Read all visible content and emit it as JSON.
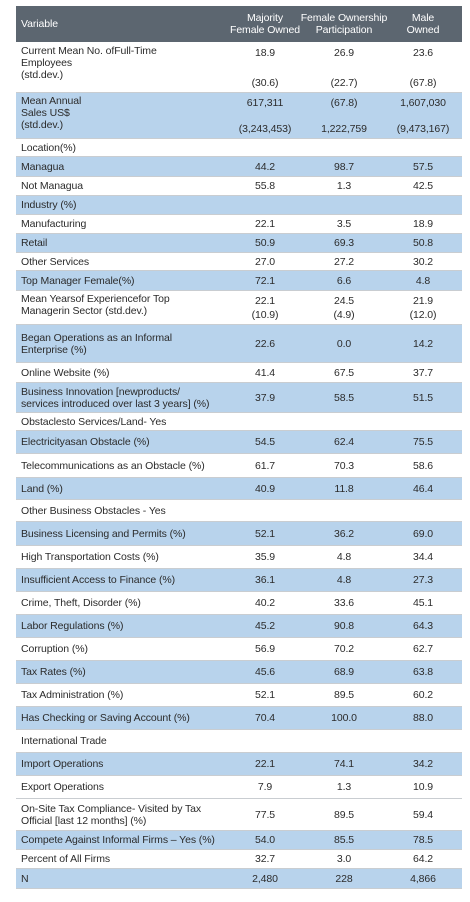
{
  "headers": {
    "variable": "Variable",
    "col1": [
      "Majority",
      "Female Owned"
    ],
    "col2": [
      "Female Ownership",
      "Participation"
    ],
    "col3": [
      "Male",
      "Owned"
    ]
  },
  "rows": [
    {
      "label": [
        "Current Mean No. ofFull-Time",
        "Employees",
        "(std.dev.)"
      ],
      "v1": [
        "18.9",
        "(30.6)"
      ],
      "v2": [
        "26.9",
        "(22.7)"
      ],
      "v3": [
        "23.6",
        "(67.8)"
      ],
      "shade": false,
      "h": 50
    },
    {
      "label": [
        "Mean Annual",
        "Sales US$",
        "(std.dev.)"
      ],
      "v1": [
        "617,311",
        "(3,243,453)"
      ],
      "v2": [
        "(67.8)",
        "1,222,759"
      ],
      "v3": [
        "1,607,030",
        "(9,473,167)"
      ],
      "shade": true,
      "h": 46
    },
    {
      "label": [
        "Location(%)"
      ],
      "v1": [
        ""
      ],
      "v2": [
        ""
      ],
      "v3": [
        ""
      ],
      "shade": false,
      "h": 18
    },
    {
      "label": [
        "Managua"
      ],
      "v1": [
        "44.2"
      ],
      "v2": [
        "98.7"
      ],
      "v3": [
        "57.5"
      ],
      "shade": true,
      "h": 20
    },
    {
      "label": [
        "Not Managua"
      ],
      "v1": [
        "55.8"
      ],
      "v2": [
        "1.3"
      ],
      "v3": [
        "42.5"
      ],
      "shade": false,
      "h": 19
    },
    {
      "label": [
        "Industry (%)"
      ],
      "v1": [
        ""
      ],
      "v2": [
        ""
      ],
      "v3": [
        ""
      ],
      "shade": true,
      "h": 19
    },
    {
      "label": [
        "Manufacturing"
      ],
      "v1": [
        "22.1"
      ],
      "v2": [
        "3.5"
      ],
      "v3": [
        "18.9"
      ],
      "shade": false,
      "h": 19
    },
    {
      "label": [
        "Retail"
      ],
      "v1": [
        "50.9"
      ],
      "v2": [
        "69.3"
      ],
      "v3": [
        "50.8"
      ],
      "shade": true,
      "h": 19
    },
    {
      "label": [
        "Other Services"
      ],
      "v1": [
        "27.0"
      ],
      "v2": [
        "27.2"
      ],
      "v3": [
        "30.2"
      ],
      "shade": false,
      "h": 18
    },
    {
      "label": [
        "Top Manager Female(%)"
      ],
      "v1": [
        "72.1"
      ],
      "v2": [
        "6.6"
      ],
      "v3": [
        "4.8"
      ],
      "shade": true,
      "h": 20
    },
    {
      "label": [
        "Mean Yearsof Experiencefor Top",
        "Managerin Sector (std.dev.)"
      ],
      "v1": [
        "22.1",
        "(10.9)"
      ],
      "v2": [
        "24.5",
        "(4.9)"
      ],
      "v3": [
        "21.9",
        "(12.0)"
      ],
      "shade": false,
      "h": 34
    },
    {
      "label": [
        "Began Operations as an Informal",
        "Enterprise (%)"
      ],
      "v1": [
        "22.6"
      ],
      "v2": [
        "0.0"
      ],
      "v3": [
        "14.2"
      ],
      "shade": true,
      "h": 38
    },
    {
      "label": [
        "Online Website (%)"
      ],
      "v1": [
        "41.4"
      ],
      "v2": [
        "67.5"
      ],
      "v3": [
        "37.7"
      ],
      "shade": false,
      "h": 20
    },
    {
      "label": [
        "Business Innovation [newproducts/",
        "services introduced over last 3 years] (%)"
      ],
      "v1": [
        "37.9"
      ],
      "v2": [
        "58.5"
      ],
      "v3": [
        "51.5"
      ],
      "shade": true,
      "h": 30
    },
    {
      "label": [
        "Obstaclesto Services/Land- Yes"
      ],
      "v1": [
        ""
      ],
      "v2": [
        ""
      ],
      "v3": [
        ""
      ],
      "shade": false,
      "h": 18
    },
    {
      "label": [
        "Electricityasan Obstacle (%)"
      ],
      "v1": [
        "54.5"
      ],
      "v2": [
        "62.4"
      ],
      "v3": [
        "75.5"
      ],
      "shade": true,
      "h": 23
    },
    {
      "label": [
        "Telecommunications as an Obstacle (%)"
      ],
      "v1": [
        "61.7"
      ],
      "v2": [
        "70.3"
      ],
      "v3": [
        "58.6"
      ],
      "shade": false,
      "h": 24
    },
    {
      "label": [
        "Land (%)"
      ],
      "v1": [
        "40.9"
      ],
      "v2": [
        "11.8"
      ],
      "v3": [
        "46.4"
      ],
      "shade": true,
      "h": 22
    },
    {
      "label": [
        "Other Business Obstacles - Yes"
      ],
      "v1": [
        ""
      ],
      "v2": [
        ""
      ],
      "v3": [
        ""
      ],
      "shade": false,
      "h": 22
    },
    {
      "label": [
        "Business Licensing and Permits (%)"
      ],
      "v1": [
        "52.1"
      ],
      "v2": [
        "36.2"
      ],
      "v3": [
        "69.0"
      ],
      "shade": true,
      "h": 24
    },
    {
      "label": [
        "High Transportation Costs (%)"
      ],
      "v1": [
        "35.9"
      ],
      "v2": [
        "4.8"
      ],
      "v3": [
        "34.4"
      ],
      "shade": false,
      "h": 23
    },
    {
      "label": [
        "Insufficient Access to Finance (%)"
      ],
      "v1": [
        "36.1"
      ],
      "v2": [
        "4.8"
      ],
      "v3": [
        "27.3"
      ],
      "shade": true,
      "h": 23
    },
    {
      "label": [
        "Crime, Theft, Disorder (%)"
      ],
      "v1": [
        "40.2"
      ],
      "v2": [
        "33.6"
      ],
      "v3": [
        "45.1"
      ],
      "shade": false,
      "h": 23
    },
    {
      "label": [
        "Labor Regulations (%)"
      ],
      "v1": [
        "45.2"
      ],
      "v2": [
        "90.8"
      ],
      "v3": [
        "64.3"
      ],
      "shade": true,
      "h": 23
    },
    {
      "label": [
        "Corruption (%)"
      ],
      "v1": [
        "56.9"
      ],
      "v2": [
        "70.2"
      ],
      "v3": [
        "62.7"
      ],
      "shade": false,
      "h": 23
    },
    {
      "label": [
        "Tax Rates (%)"
      ],
      "v1": [
        "45.6"
      ],
      "v2": [
        "68.9"
      ],
      "v3": [
        "63.8"
      ],
      "shade": true,
      "h": 23
    },
    {
      "label": [
        "Tax Administration (%)"
      ],
      "v1": [
        "52.1"
      ],
      "v2": [
        "89.5"
      ],
      "v3": [
        "60.2"
      ],
      "shade": false,
      "h": 23
    },
    {
      "label": [
        "Has Checking or Saving Account (%)"
      ],
      "v1": [
        "70.4"
      ],
      "v2": [
        "100.0"
      ],
      "v3": [
        "88.0"
      ],
      "shade": true,
      "h": 23
    },
    {
      "label": [
        "International Trade"
      ],
      "v1": [
        ""
      ],
      "v2": [
        ""
      ],
      "v3": [
        ""
      ],
      "shade": false,
      "h": 23
    },
    {
      "label": [
        "Import Operations"
      ],
      "v1": [
        "22.1"
      ],
      "v2": [
        "74.1"
      ],
      "v3": [
        "34.2"
      ],
      "shade": true,
      "h": 23
    },
    {
      "label": [
        "Export Operations"
      ],
      "v1": [
        "7.9"
      ],
      "v2": [
        "1.3"
      ],
      "v3": [
        "10.9"
      ],
      "shade": false,
      "h": 23
    },
    {
      "label": [
        "On-Site Tax Compliance- Visited by Tax",
        "Official [last 12 months] (%)"
      ],
      "v1": [
        "77.5"
      ],
      "v2": [
        "89.5"
      ],
      "v3": [
        "59.4"
      ],
      "shade": false,
      "h": 32
    },
    {
      "label": [
        "Compete Against Informal Firms – Yes (%)"
      ],
      "v1": [
        "54.0"
      ],
      "v2": [
        "85.5"
      ],
      "v3": [
        "78.5"
      ],
      "shade": true,
      "h": 19
    },
    {
      "label": [
        "Percent of All Firms"
      ],
      "v1": [
        "32.7"
      ],
      "v2": [
        "3.0"
      ],
      "v3": [
        "64.2"
      ],
      "shade": false,
      "h": 19
    },
    {
      "label": [
        "N"
      ],
      "v1": [
        "2,480"
      ],
      "v2": [
        "228"
      ],
      "v3": [
        "4,866"
      ],
      "shade": true,
      "h": 20
    }
  ]
}
